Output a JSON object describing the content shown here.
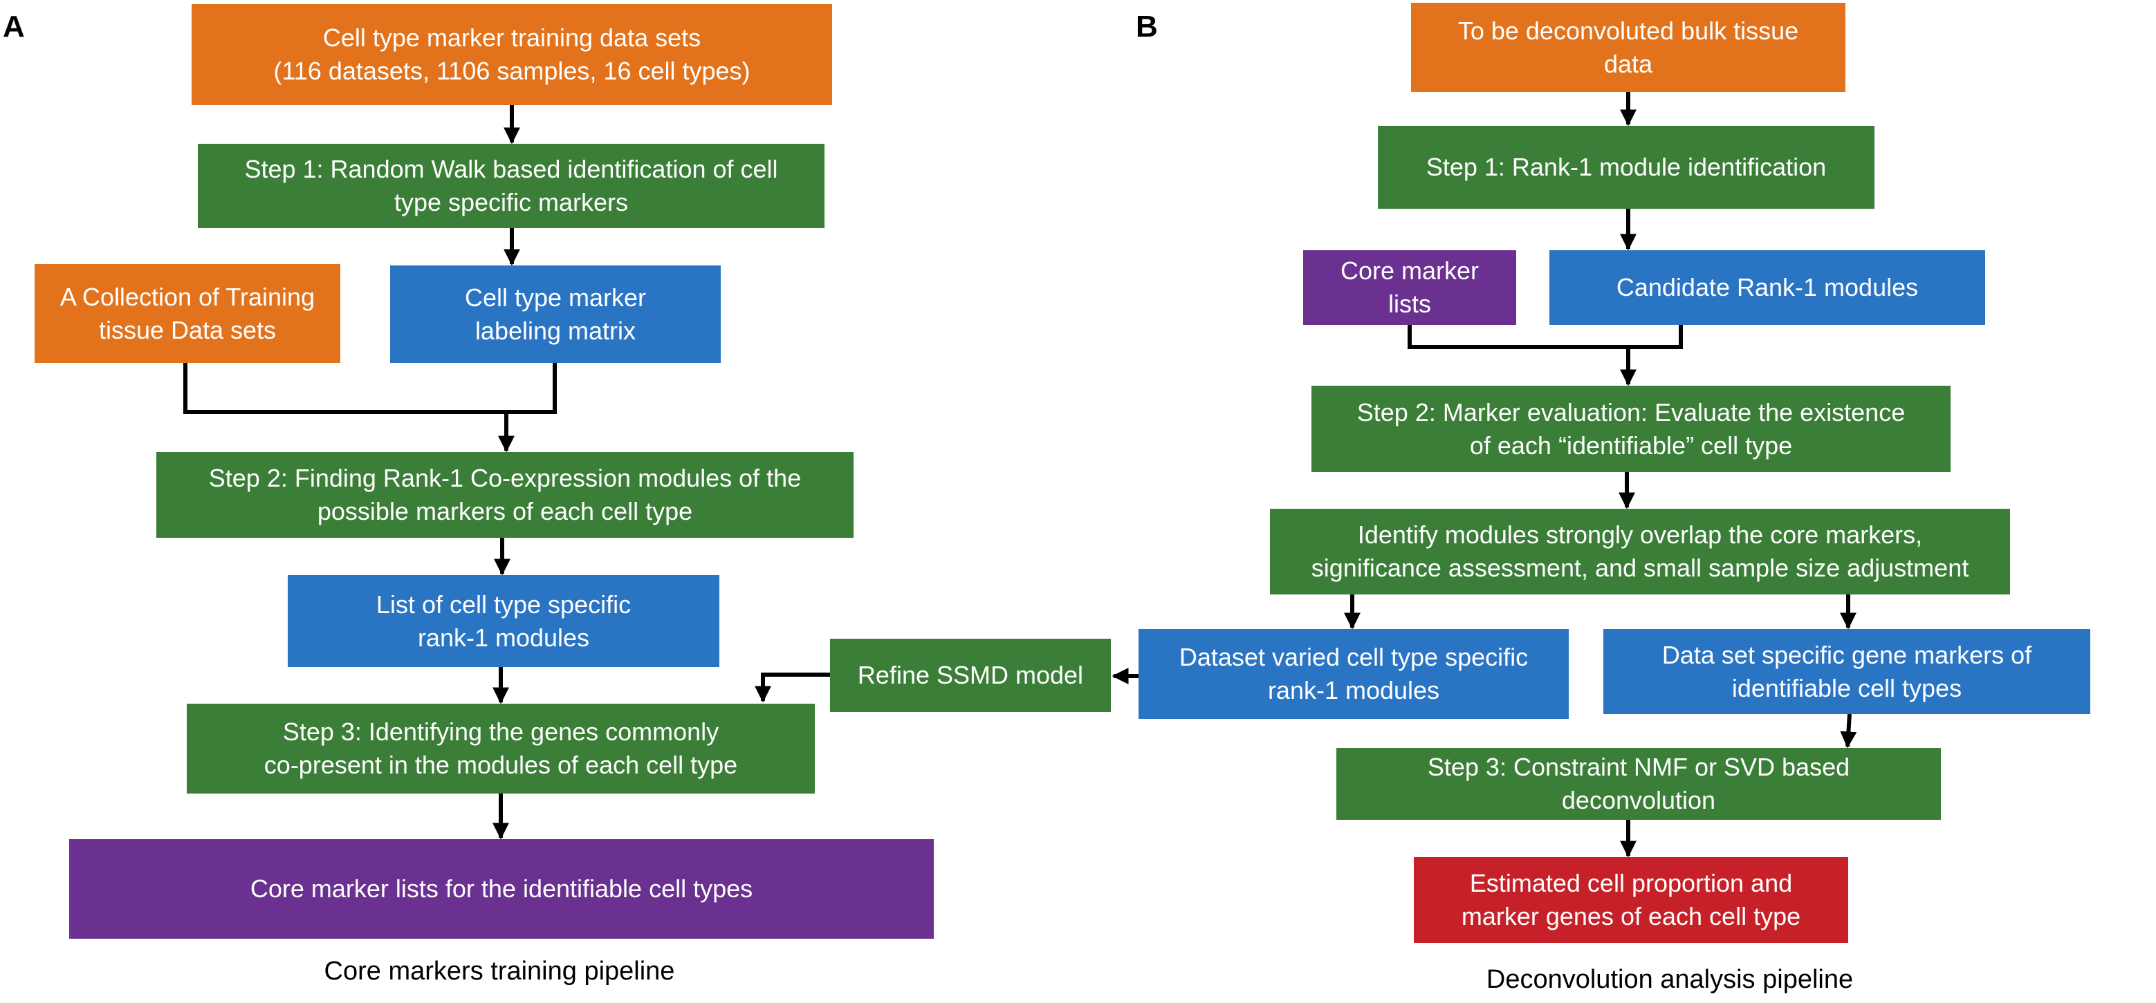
{
  "panel_a": {
    "letter": "A",
    "caption": "Core markers training pipeline",
    "training_data": [
      "Cell type marker training data sets",
      "(116 datasets, 1106 samples, 16 cell types)"
    ],
    "step1": [
      "Step 1: Random Walk based identification of cell",
      "type specific markers"
    ],
    "collection": [
      "A Collection of Training",
      "tissue Data sets"
    ],
    "labeling_matrix": [
      "Cell type marker",
      "labeling matrix"
    ],
    "step2": [
      "Step 2: Finding Rank-1 Co-expression modules of the",
      "possible markers of each cell type"
    ],
    "module_list": [
      "List of cell type specific",
      "rank-1 modules"
    ],
    "step3": [
      "Step 3: Identifying the genes commonly",
      "co-present in the modules of each cell type"
    ],
    "core_marker_lists": [
      "Core marker lists for the identifiable cell types"
    ],
    "refine_model": [
      "Refine SSMD model"
    ]
  },
  "panel_b": {
    "letter": "B",
    "caption": "Deconvolution analysis pipeline",
    "bulk_data": [
      "To be deconvoluted bulk tissue",
      "data"
    ],
    "step1": [
      "Step 1: Rank-1 module identification"
    ],
    "core_marker_lists": [
      "Core marker",
      "lists"
    ],
    "candidate_modules": [
      "Candidate Rank-1 modules"
    ],
    "step2": [
      "Step 2: Marker evaluation: Evaluate the existence",
      "of each “identifiable” cell type"
    ],
    "identify_modules": [
      "Identify modules strongly overlap the core markers,",
      "significance assessment, and small sample size adjustment"
    ],
    "varied_modules": [
      "Dataset varied cell type specific",
      "rank-1 modules"
    ],
    "specific_markers": [
      "Data set specific gene markers of",
      "identifiable cell types"
    ],
    "step3": [
      "Step 3: Constraint NMF or SVD based",
      "deconvolution"
    ],
    "estimated": [
      "Estimated cell proportion and",
      "marker genes of each cell type"
    ]
  },
  "colors": {
    "data_input": "#E2731C",
    "process_step": "#3B7E38",
    "intermediate": "#2A74C4",
    "core_markers": "#6B3190",
    "final_output": "#C62128",
    "connector": "#000000"
  }
}
